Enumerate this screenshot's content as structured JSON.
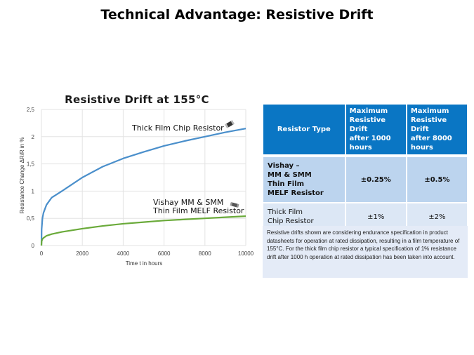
{
  "slide": {
    "title": "Technical Advantage: Resistive Drift"
  },
  "chart_data": {
    "type": "line",
    "title": "Resistive  Drift  at 155°C",
    "xlabel": "Time t in hours",
    "ylabel": "Resistance Change ΔR/R in %",
    "xlim": [
      0,
      10000
    ],
    "ylim": [
      0,
      2.5
    ],
    "x_ticks": [
      "0",
      "2000",
      "4000",
      "6000",
      "8000",
      "10000"
    ],
    "x_tick_values": [
      0,
      2000,
      4000,
      6000,
      8000,
      10000
    ],
    "y_ticks": [
      "0",
      "0,5",
      "1",
      "1,5",
      "2",
      "2,5"
    ],
    "y_tick_values": [
      0,
      0.5,
      1,
      1.5,
      2,
      2.5
    ],
    "grid": true,
    "series": [
      {
        "name": "Thick Film Chip Resistor",
        "color": "#4a8fcb",
        "x": [
          0,
          10,
          50,
          100,
          250,
          500,
          1000,
          2000,
          3000,
          4000,
          5000,
          6000,
          7000,
          8000,
          9000,
          10000
        ],
        "y": [
          0,
          0.3,
          0.5,
          0.6,
          0.75,
          0.88,
          1.0,
          1.25,
          1.45,
          1.6,
          1.72,
          1.83,
          1.92,
          2.0,
          2.08,
          2.15
        ]
      },
      {
        "name": "Vishay MM & SMM Thin Film MELF Resistor",
        "color": "#6aaa3a",
        "x": [
          0,
          10,
          50,
          100,
          250,
          500,
          1000,
          2000,
          3000,
          4000,
          5000,
          6000,
          7000,
          8000,
          9000,
          10000
        ],
        "y": [
          0,
          0.08,
          0.12,
          0.14,
          0.18,
          0.21,
          0.25,
          0.31,
          0.36,
          0.4,
          0.43,
          0.46,
          0.48,
          0.5,
          0.52,
          0.54
        ]
      }
    ],
    "annotations": [
      {
        "text": "Thick Film Chip Resistor",
        "series": 0
      },
      {
        "text": "Vishay MM & SMM",
        "series": 1
      },
      {
        "text": "Thin Film MELF Resistor",
        "series": 1
      }
    ]
  },
  "table": {
    "headers": [
      "Resistor Type",
      "Maximum Resistive Drift after 1000 hours",
      "Maximum Resistive Drift after 8000 hours"
    ],
    "header_lines": [
      [
        "Resistor Type"
      ],
      [
        "Maximum",
        "Resistive Drift",
        "after 1000",
        "hours"
      ],
      [
        "Maximum",
        "Resistive Drift",
        "after 8000",
        "hours"
      ]
    ],
    "rows": [
      {
        "name_lines": [
          "Vishay –",
          "MM & SMM",
          "Thin Film",
          "MELF Resistor"
        ],
        "drift_1000": "±0.25%",
        "drift_8000": "±0.5%"
      },
      {
        "name_lines": [
          "Thick Film",
          "Chip Resistor"
        ],
        "drift_1000": "±1%",
        "drift_8000": "±2%"
      }
    ],
    "header_color": "#0a76c4"
  },
  "note": "Resistive drifts shown are considering endurance  specification in product datasheets for operation at rated dissipation, resulting in a film temperature of 155°C. For the thick film chip resistor a typical specification of 1% resistance drift after 1000  h operation at rated dissipation has been taken into account."
}
